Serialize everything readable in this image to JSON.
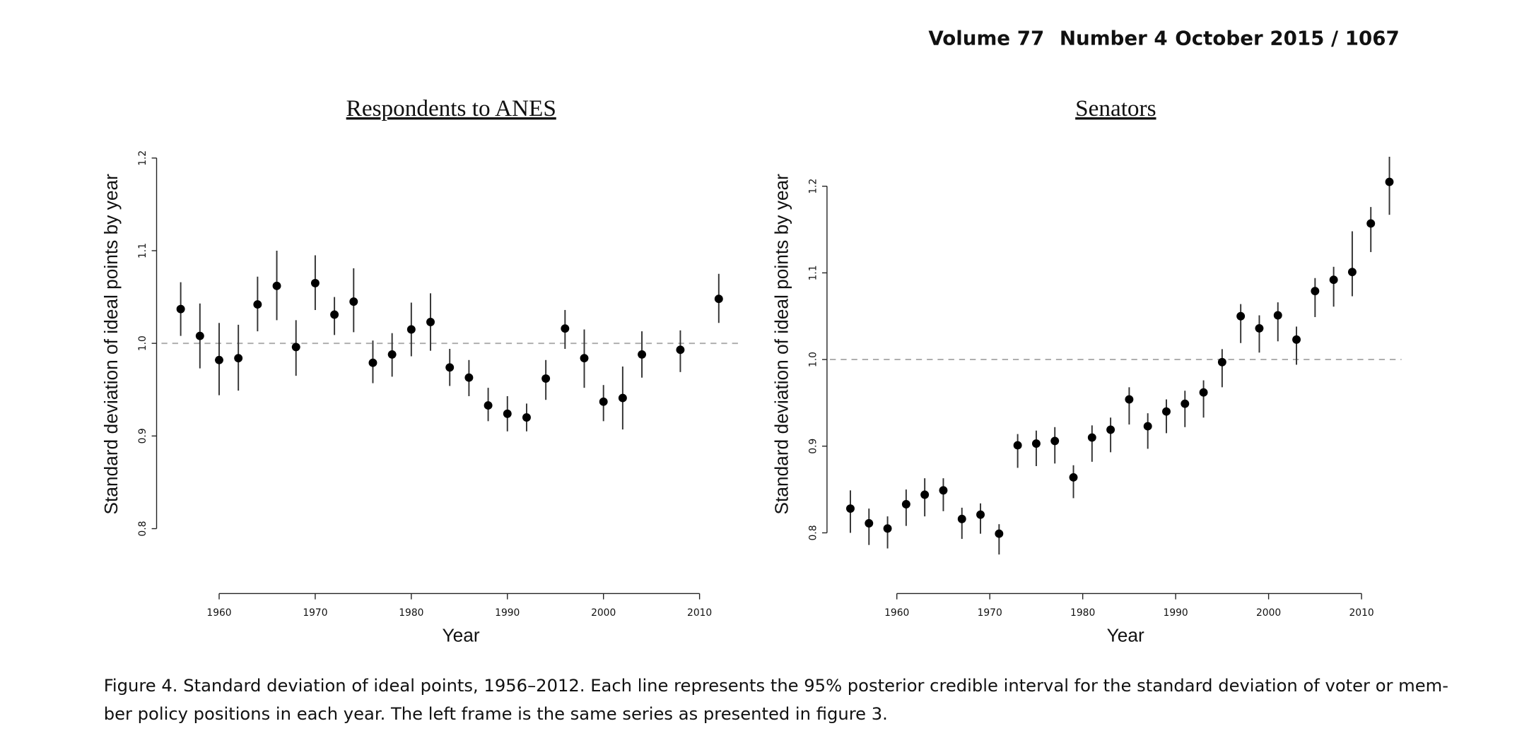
{
  "header": {
    "volume": "Volume 77",
    "number": "Number 4",
    "date_page": "October 2015 / 1067"
  },
  "caption_lines": [
    "Figure 4. Standard deviation of ideal points, 1956–2012. Each line represents the 95% posterior credible interval for the standard deviation of voter or mem-",
    "ber policy positions in each year. The left frame is the same series as presented in figure 3."
  ],
  "chart_data": [
    {
      "type": "errorbar",
      "title": "Respondents to ANES",
      "x_label": "Year",
      "y_label": "Standard deviation of ideal points by year",
      "x": [
        1956,
        1958,
        1960,
        1962,
        1964,
        1966,
        1968,
        1970,
        1972,
        1974,
        1976,
        1978,
        1980,
        1982,
        1984,
        1986,
        1988,
        1990,
        1992,
        1994,
        1996,
        1998,
        2000,
        2002,
        2004,
        2008,
        2012
      ],
      "values": [
        1.037,
        1.008,
        0.982,
        0.984,
        1.042,
        1.062,
        0.996,
        1.065,
        1.031,
        1.045,
        0.979,
        0.988,
        1.015,
        1.023,
        0.974,
        0.963,
        0.933,
        0.924,
        0.92,
        0.962,
        1.016,
        0.984,
        0.937,
        0.941,
        0.988,
        0.993,
        1.048
      ],
      "upper": [
        1.066,
        1.043,
        1.022,
        1.02,
        1.072,
        1.1,
        1.025,
        1.095,
        1.05,
        1.081,
        1.003,
        1.011,
        1.044,
        1.054,
        0.994,
        0.982,
        0.952,
        0.943,
        0.935,
        0.982,
        1.036,
        1.015,
        0.955,
        0.975,
        1.013,
        1.014,
        1.075
      ],
      "lower": [
        1.008,
        0.973,
        0.944,
        0.949,
        1.013,
        1.025,
        0.965,
        1.036,
        1.009,
        1.012,
        0.957,
        0.964,
        0.986,
        0.992,
        0.954,
        0.943,
        0.916,
        0.905,
        0.905,
        0.939,
        0.994,
        0.952,
        0.916,
        0.907,
        0.963,
        0.969,
        1.022
      ],
      "color": "#000000",
      "reference_line": 1,
      "xlim": [
        1954,
        2014.3
      ],
      "ylim": [
        0.73,
        1.207
      ],
      "xticks": [
        1960,
        1970,
        1980,
        1990,
        2000,
        2010
      ],
      "yticks": [
        0.8,
        0.9,
        {
          "value": 1,
          "label": "1.0"
        },
        1.1,
        1.2
      ]
    },
    {
      "type": "errorbar",
      "title": "Senators",
      "x_label": "Year",
      "y_label": "Standard deviation of ideal points by year",
      "x": [
        1955,
        1957,
        1959,
        1961,
        1963,
        1965,
        1967,
        1969,
        1971,
        1973,
        1975,
        1977,
        1979,
        1981,
        1983,
        1985,
        1987,
        1989,
        1991,
        1993,
        1995,
        1997,
        1999,
        2001,
        2003,
        2005,
        2007,
        2009,
        2011,
        2013
      ],
      "values": [
        0.828,
        0.811,
        0.805,
        0.833,
        0.844,
        0.849,
        0.816,
        0.821,
        0.799,
        0.901,
        0.903,
        0.906,
        0.864,
        0.91,
        0.919,
        0.954,
        0.923,
        0.94,
        0.949,
        0.962,
        0.997,
        1.05,
        1.036,
        1.051,
        1.023,
        1.079,
        1.092,
        1.101,
        1.157,
        1.205
      ],
      "upper": [
        0.849,
        0.828,
        0.819,
        0.85,
        0.863,
        0.863,
        0.829,
        0.834,
        0.81,
        0.914,
        0.918,
        0.922,
        0.878,
        0.924,
        0.933,
        0.968,
        0.938,
        0.954,
        0.964,
        0.976,
        1.012,
        1.064,
        1.051,
        1.066,
        1.038,
        1.094,
        1.107,
        1.148,
        1.176,
        1.234
      ],
      "lower": [
        0.8,
        0.786,
        0.782,
        0.808,
        0.819,
        0.825,
        0.793,
        0.799,
        0.775,
        0.875,
        0.877,
        0.88,
        0.84,
        0.882,
        0.893,
        0.925,
        0.897,
        0.915,
        0.922,
        0.933,
        0.968,
        1.019,
        1.008,
        1.021,
        0.994,
        1.049,
        1.061,
        1.073,
        1.124,
        1.167
      ],
      "color": "#000000",
      "reference_line": 1,
      "xlim": [
        1952.8,
        2014.3
      ],
      "ylim": [
        0.73,
        1.24
      ],
      "xticks": [
        1960,
        1970,
        1980,
        1990,
        2000,
        2010
      ],
      "yticks": [
        0.8,
        0.9,
        {
          "value": 1,
          "label": "1.0"
        },
        1.1,
        1.2
      ]
    }
  ]
}
